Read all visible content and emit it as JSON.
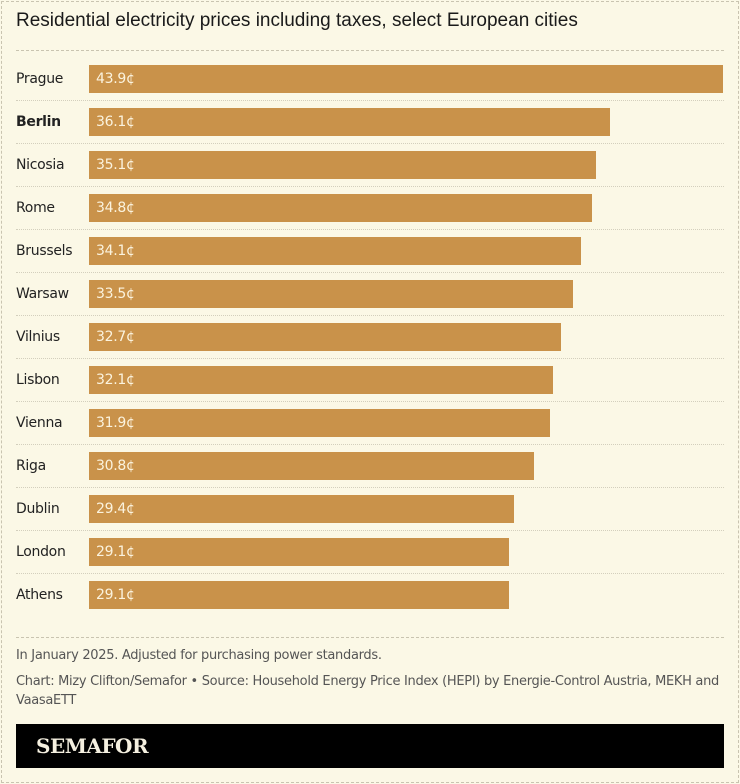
{
  "title": "Residential electricity prices including taxes, select European cities",
  "chart_data": {
    "type": "bar",
    "orientation": "horizontal",
    "title": "Residential electricity prices including taxes, select European cities",
    "unit": "¢",
    "categories": [
      "Prague",
      "Berlin",
      "Nicosia",
      "Rome",
      "Brussels",
      "Warsaw",
      "Vilnius",
      "Lisbon",
      "Vienna",
      "Riga",
      "Dublin",
      "London",
      "Athens"
    ],
    "values": [
      43.9,
      36.1,
      35.1,
      34.8,
      34.1,
      33.5,
      32.7,
      32.1,
      31.9,
      30.8,
      29.4,
      29.1,
      29.1
    ],
    "labels": [
      "43.9¢",
      "36.1¢",
      "35.1¢",
      "34.8¢",
      "34.1¢",
      "33.5¢",
      "32.7¢",
      "32.1¢",
      "31.9¢",
      "30.8¢",
      "29.4¢",
      "29.1¢",
      "29.1¢"
    ],
    "highlight": "Berlin",
    "xlim": [
      0,
      43.9
    ],
    "bar_color": "#c9924a"
  },
  "notes": "In January 2025. Adjusted for purchasing power standards.",
  "source": "Chart: Mizy Clifton/Semafor • Source: Household Energy Price Index (HEPI) by Energie-Control Austria, MEKH and VaasaETT",
  "brand": "SEMAFOR"
}
